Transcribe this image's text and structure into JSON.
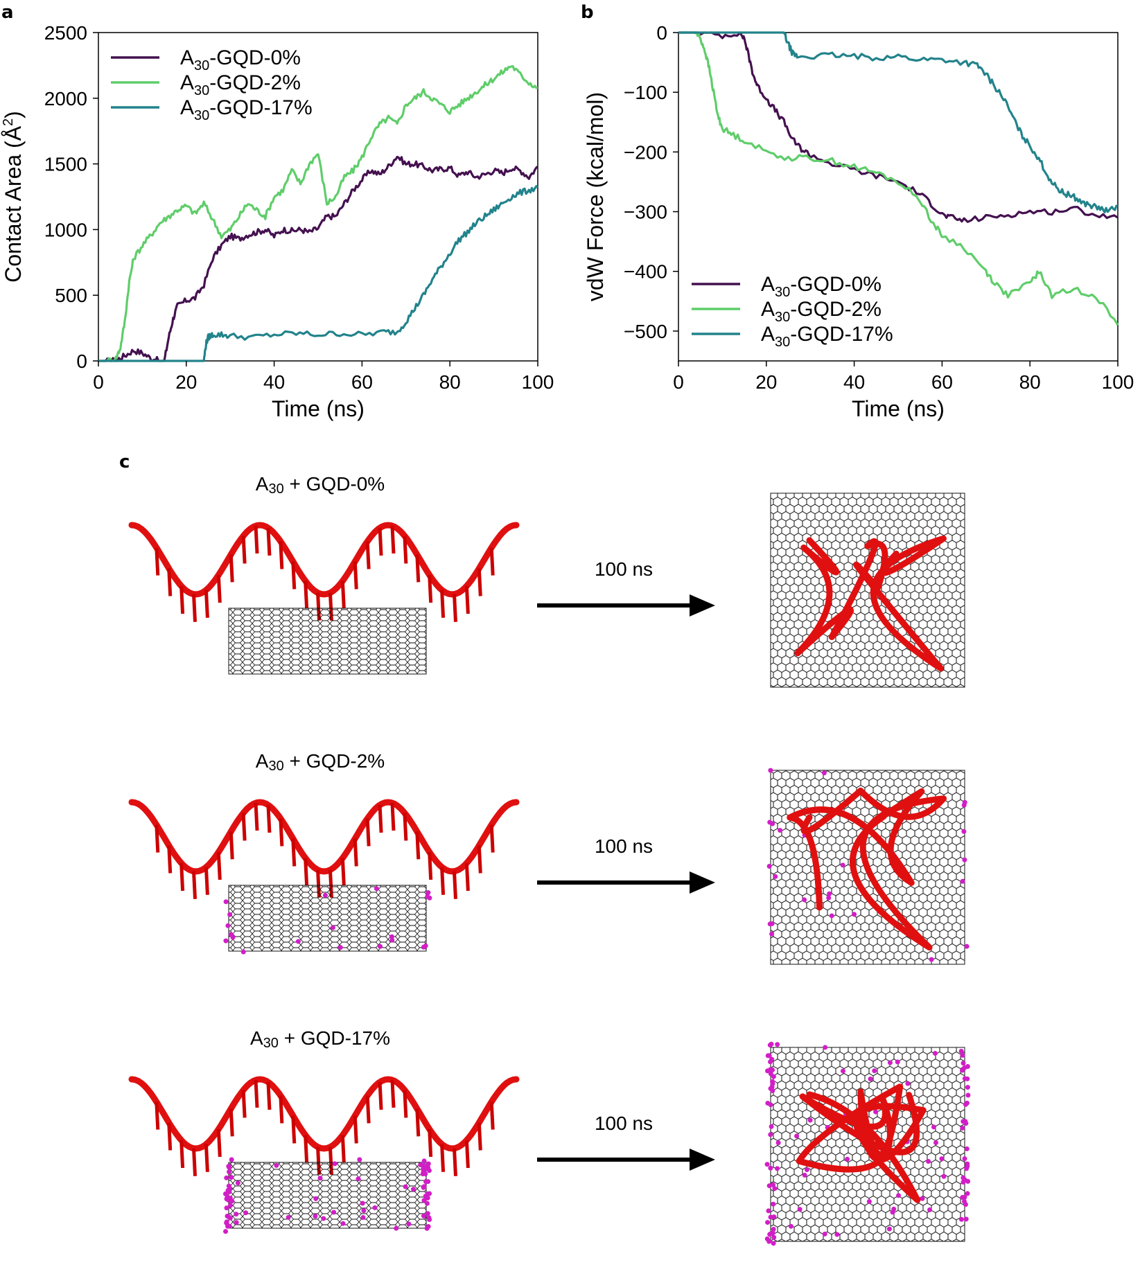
{
  "panels": {
    "a": "a",
    "b": "b",
    "c": "c"
  },
  "colors": {
    "gqd0": "#44114f",
    "gqd2": "#5fcd6a",
    "gqd17": "#22838b",
    "dna": "#e01010",
    "dnaDark": "#7a0000",
    "oxygen": "#d21ec7"
  },
  "chart_data": [
    {
      "id": "a",
      "type": "line",
      "xlabel": "Time (ns)",
      "ylabel": "Contact Area (Å²)",
      "ylabel_main": "Contact Area (Å",
      "ylabel_sup": "2",
      "ylabel_close": ")",
      "xlim": [
        0,
        100
      ],
      "ylim": [
        0,
        2500
      ],
      "xticks": [
        0,
        20,
        40,
        60,
        80,
        100
      ],
      "yticks": [
        0,
        500,
        1000,
        1500,
        2000,
        2500
      ],
      "legend_position": "top-left",
      "series": [
        {
          "key": "gqd0",
          "name": "A30-GQD-0%",
          "label_main": "A",
          "label_sub": "30",
          "label_rest": "-GQD-0%",
          "x": [
            0,
            2,
            4,
            6,
            8,
            10,
            12,
            14,
            15,
            16,
            17,
            18,
            20,
            22,
            24,
            26,
            28,
            30,
            32,
            34,
            36,
            38,
            40,
            42,
            44,
            46,
            48,
            50,
            52,
            54,
            56,
            58,
            60,
            62,
            64,
            66,
            68,
            70,
            72,
            74,
            76,
            78,
            80,
            82,
            84,
            86,
            88,
            90,
            92,
            94,
            96,
            98,
            100
          ],
          "y": [
            0,
            0,
            5,
            40,
            80,
            60,
            20,
            0,
            0,
            180,
            320,
            420,
            460,
            480,
            580,
            780,
            880,
            950,
            930,
            960,
            980,
            1000,
            950,
            1000,
            990,
            1000,
            980,
            1010,
            1100,
            1100,
            1200,
            1300,
            1380,
            1450,
            1420,
            1480,
            1560,
            1500,
            1500,
            1480,
            1450,
            1460,
            1470,
            1410,
            1440,
            1400,
            1420,
            1450,
            1430,
            1470,
            1450,
            1400,
            1480
          ]
        },
        {
          "key": "gqd2",
          "name": "A30-GQD-2%",
          "label_main": "A",
          "label_sub": "30",
          "label_rest": "-GQD-2%",
          "x": [
            0,
            2,
            4,
            5,
            6,
            7,
            8,
            10,
            12,
            14,
            16,
            18,
            20,
            22,
            24,
            26,
            28,
            30,
            32,
            34,
            36,
            38,
            40,
            42,
            44,
            46,
            48,
            50,
            52,
            54,
            56,
            58,
            60,
            62,
            64,
            66,
            68,
            70,
            72,
            74,
            76,
            78,
            80,
            82,
            84,
            86,
            88,
            90,
            92,
            94,
            96,
            98,
            100
          ],
          "y": [
            0,
            0,
            20,
            100,
            300,
            600,
            780,
            880,
            960,
            1050,
            1100,
            1150,
            1180,
            1120,
            1200,
            1080,
            950,
            1000,
            1100,
            1200,
            1150,
            1100,
            1250,
            1300,
            1450,
            1350,
            1500,
            1580,
            1200,
            1250,
            1400,
            1450,
            1550,
            1700,
            1800,
            1850,
            1800,
            1950,
            2000,
            2050,
            2000,
            1950,
            1900,
            1950,
            2000,
            2050,
            2100,
            2150,
            2200,
            2250,
            2180,
            2120,
            2080
          ]
        },
        {
          "key": "gqd17",
          "name": "A30-GQD-17%",
          "label_main": "A",
          "label_sub": "30",
          "label_rest": "-GQD-17%",
          "x": [
            0,
            5,
            10,
            15,
            20,
            24,
            24.5,
            25,
            26,
            28,
            30,
            35,
            40,
            45,
            50,
            55,
            60,
            65,
            68,
            70,
            72,
            74,
            76,
            78,
            80,
            82,
            84,
            86,
            88,
            90,
            92,
            94,
            96,
            98,
            100
          ],
          "y": [
            0,
            0,
            0,
            0,
            0,
            0,
            130,
            180,
            200,
            200,
            190,
            180,
            200,
            210,
            200,
            210,
            200,
            220,
            220,
            300,
            400,
            500,
            620,
            720,
            820,
            920,
            980,
            1050,
            1100,
            1150,
            1200,
            1250,
            1280,
            1300,
            1320
          ]
        }
      ]
    },
    {
      "id": "b",
      "type": "line",
      "xlabel": "Time (ns)",
      "ylabel": "vdW Force (kcal/mol)",
      "xlim": [
        0,
        100
      ],
      "ylim": [
        -550,
        0
      ],
      "xticks": [
        0,
        20,
        40,
        60,
        80,
        100
      ],
      "yticks": [
        0,
        -100,
        -200,
        -300,
        -400,
        -500
      ],
      "ytick_labels": [
        "0",
        "−100",
        "−200",
        "−300",
        "−400",
        "−500"
      ],
      "legend_position": "bottom-left",
      "series": [
        {
          "key": "gqd0",
          "name": "A30-GQD-0%",
          "label_main": "A",
          "label_sub": "30",
          "label_rest": "-GQD-0%",
          "x": [
            0,
            5,
            10,
            14,
            15,
            16,
            17,
            18,
            20,
            22,
            24,
            26,
            28,
            30,
            35,
            40,
            45,
            50,
            55,
            58,
            60,
            62,
            65,
            70,
            75,
            80,
            85,
            90,
            95,
            100
          ],
          "y": [
            0,
            0,
            -5,
            0,
            -10,
            -40,
            -70,
            -90,
            -110,
            -130,
            -150,
            -180,
            -195,
            -205,
            -220,
            -230,
            -240,
            -250,
            -270,
            -290,
            -305,
            -310,
            -315,
            -310,
            -305,
            -300,
            -300,
            -295,
            -305,
            -310
          ]
        },
        {
          "key": "gqd2",
          "name": "A30-GQD-2%",
          "label_main": "A",
          "label_sub": "30",
          "label_rest": "-GQD-2%",
          "x": [
            0,
            4,
            5,
            6,
            7,
            8,
            9,
            10,
            12,
            15,
            20,
            25,
            30,
            35,
            40,
            45,
            50,
            55,
            58,
            60,
            65,
            70,
            72,
            75,
            80,
            82,
            85,
            90,
            95,
            100
          ],
          "y": [
            0,
            0,
            -10,
            -30,
            -60,
            -100,
            -140,
            -160,
            -170,
            -180,
            -200,
            -210,
            -210,
            -215,
            -225,
            -235,
            -250,
            -280,
            -320,
            -340,
            -360,
            -400,
            -420,
            -440,
            -420,
            -400,
            -440,
            -430,
            -440,
            -490
          ]
        },
        {
          "key": "gqd17",
          "name": "A30-GQD-17%",
          "label_main": "A",
          "label_sub": "30",
          "label_rest": "-GQD-17%",
          "x": [
            0,
            5,
            10,
            15,
            20,
            24,
            25,
            26,
            27,
            30,
            35,
            40,
            45,
            50,
            55,
            60,
            65,
            68,
            70,
            72,
            74,
            76,
            78,
            80,
            82,
            84,
            86,
            88,
            90,
            92,
            94,
            96,
            98,
            100
          ],
          "y": [
            0,
            0,
            0,
            0,
            0,
            0,
            -20,
            -35,
            -40,
            -40,
            -38,
            -40,
            -42,
            -40,
            -45,
            -45,
            -50,
            -55,
            -70,
            -90,
            -110,
            -140,
            -170,
            -190,
            -210,
            -240,
            -260,
            -270,
            -275,
            -285,
            -290,
            -295,
            -300,
            -290
          ]
        }
      ]
    }
  ],
  "panel_c": {
    "rows": [
      {
        "title_main": "A",
        "title_sub": "30",
        "title_rest": " + GQD-0%",
        "arrow_label": "100 ns",
        "oxide": false
      },
      {
        "title_main": "A",
        "title_sub": "30",
        "title_rest": " + GQD-2%",
        "arrow_label": "100 ns",
        "oxide": true
      },
      {
        "title_main": "A",
        "title_sub": "30",
        "title_rest": " + GQD-17%",
        "arrow_label": "100 ns",
        "oxide": true
      }
    ]
  }
}
